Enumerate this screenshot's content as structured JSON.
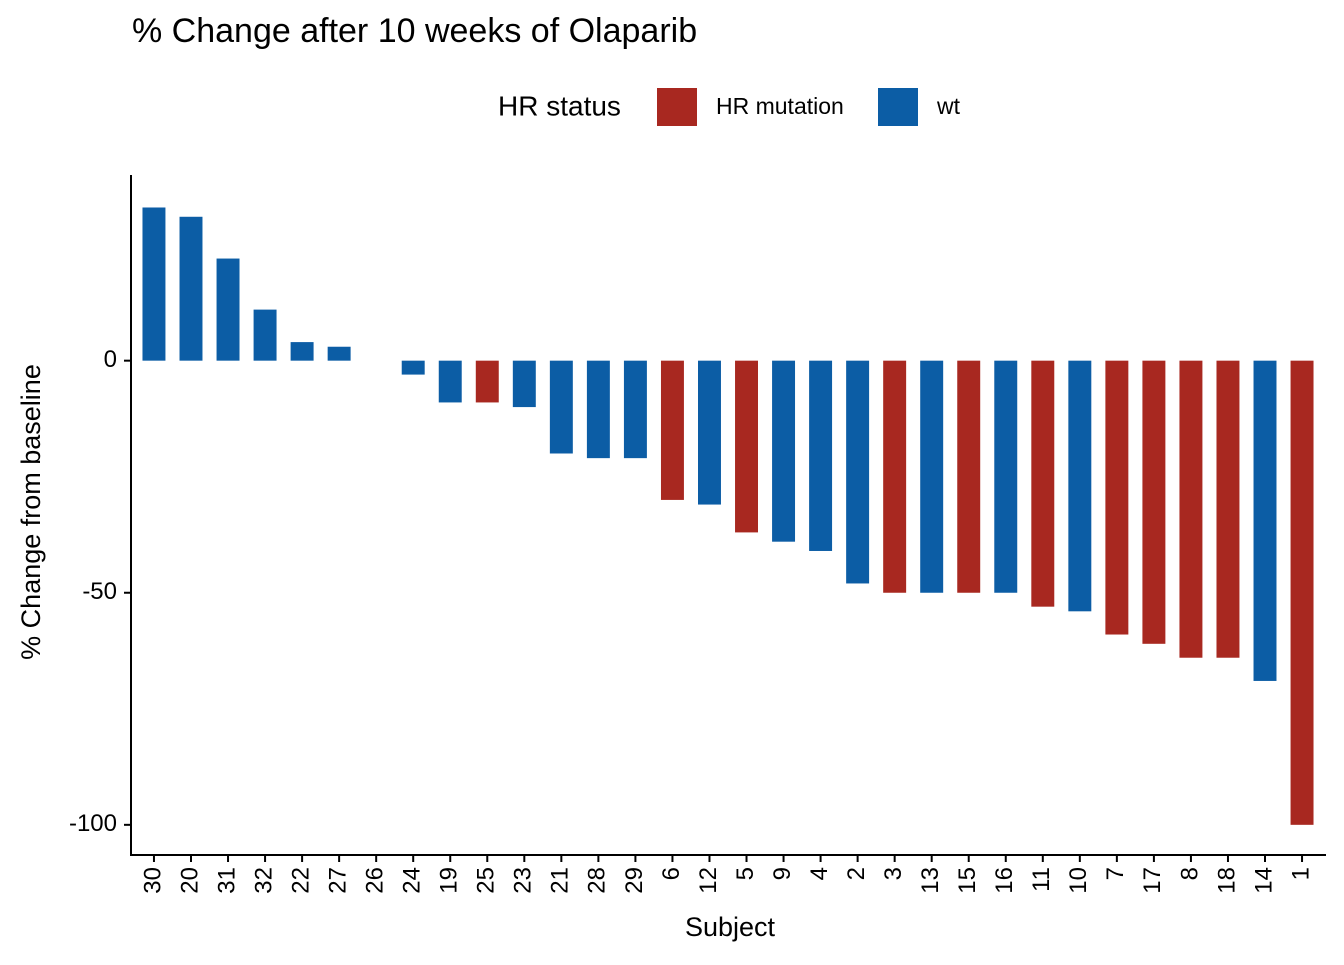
{
  "chart_data": {
    "type": "bar",
    "title": "% Change after 10 weeks of Olaparib",
    "legend_title": "HR status",
    "x_label": "Subject",
    "y_label": "% Change from baseline",
    "categories": [
      "30",
      "20",
      "31",
      "32",
      "22",
      "27",
      "26",
      "24",
      "19",
      "25",
      "23",
      "21",
      "28",
      "29",
      "6",
      "12",
      "5",
      "9",
      "4",
      "2",
      "3",
      "13",
      "15",
      "16",
      "11",
      "10",
      "7",
      "17",
      "8",
      "18",
      "14",
      "1"
    ],
    "series": [
      {
        "name": "HR mutation",
        "color": "#a82820",
        "values": [
          null,
          null,
          null,
          null,
          null,
          null,
          null,
          null,
          null,
          -9,
          null,
          null,
          null,
          null,
          -30,
          null,
          -37,
          null,
          null,
          null,
          -50,
          null,
          -50,
          null,
          -53,
          null,
          -59,
          -61,
          -64,
          -64,
          null,
          -100
        ]
      },
      {
        "name": "wt",
        "color": "#0c5da5",
        "values": [
          33,
          31,
          22,
          11,
          4,
          3,
          0,
          -3,
          -9,
          null,
          -10,
          -20,
          -21,
          -21,
          null,
          -31,
          null,
          -39,
          -41,
          -48,
          null,
          -50,
          null,
          -50,
          null,
          -54,
          null,
          null,
          null,
          null,
          -69,
          null
        ]
      }
    ],
    "ylim": [
      -106.5,
      40
    ],
    "yticks": [
      -100,
      -50,
      0
    ],
    "grid": false
  }
}
